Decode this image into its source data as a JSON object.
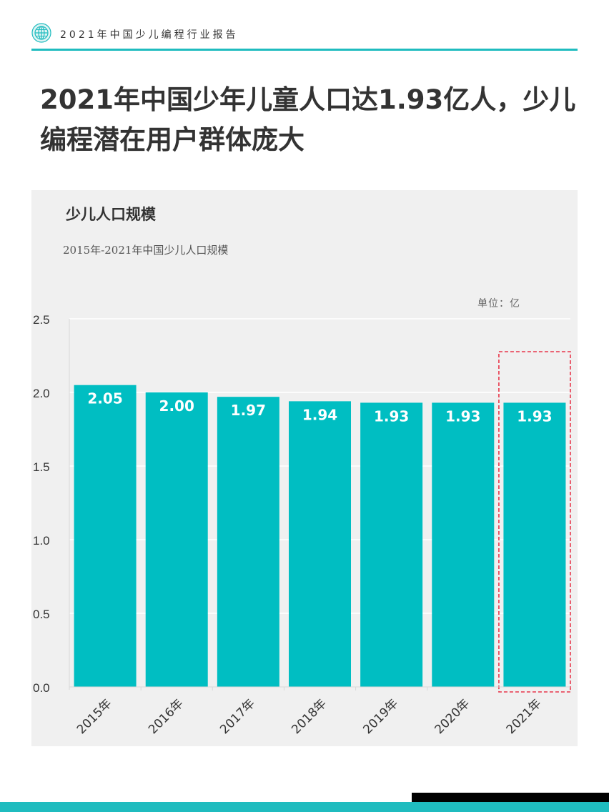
{
  "header": {
    "text": "2021年中国少儿编程行业报告",
    "logo_icon": "globe-icon",
    "accent_color": "#1fbcbf"
  },
  "headline": {
    "line1": "2021年中国少年儿童人口达1.93亿人，少儿",
    "line2": "编程潜在用户群体庞大"
  },
  "chart_data": {
    "type": "bar",
    "title": "少儿人口规模",
    "subtitle": "2015年-2021年中国少儿人口规模",
    "unit_label": "单位：亿",
    "categories": [
      "2015年",
      "2016年",
      "2017年",
      "2018年",
      "2019年",
      "2020年",
      "2021年"
    ],
    "values": [
      2.05,
      2.0,
      1.97,
      1.94,
      1.93,
      1.93,
      1.93
    ],
    "value_labels": [
      "2.05",
      "2.00",
      "1.97",
      "1.94",
      "1.93",
      "1.93",
      "1.93"
    ],
    "y_ticks": [
      "0.0",
      "0.5",
      "1.0",
      "1.5",
      "2.0",
      "2.5"
    ],
    "ylim": [
      0,
      2.5
    ],
    "grid": true,
    "bar_color": "#00bec2",
    "highlight_category": "2021年",
    "highlight_color": "#e8364a"
  }
}
